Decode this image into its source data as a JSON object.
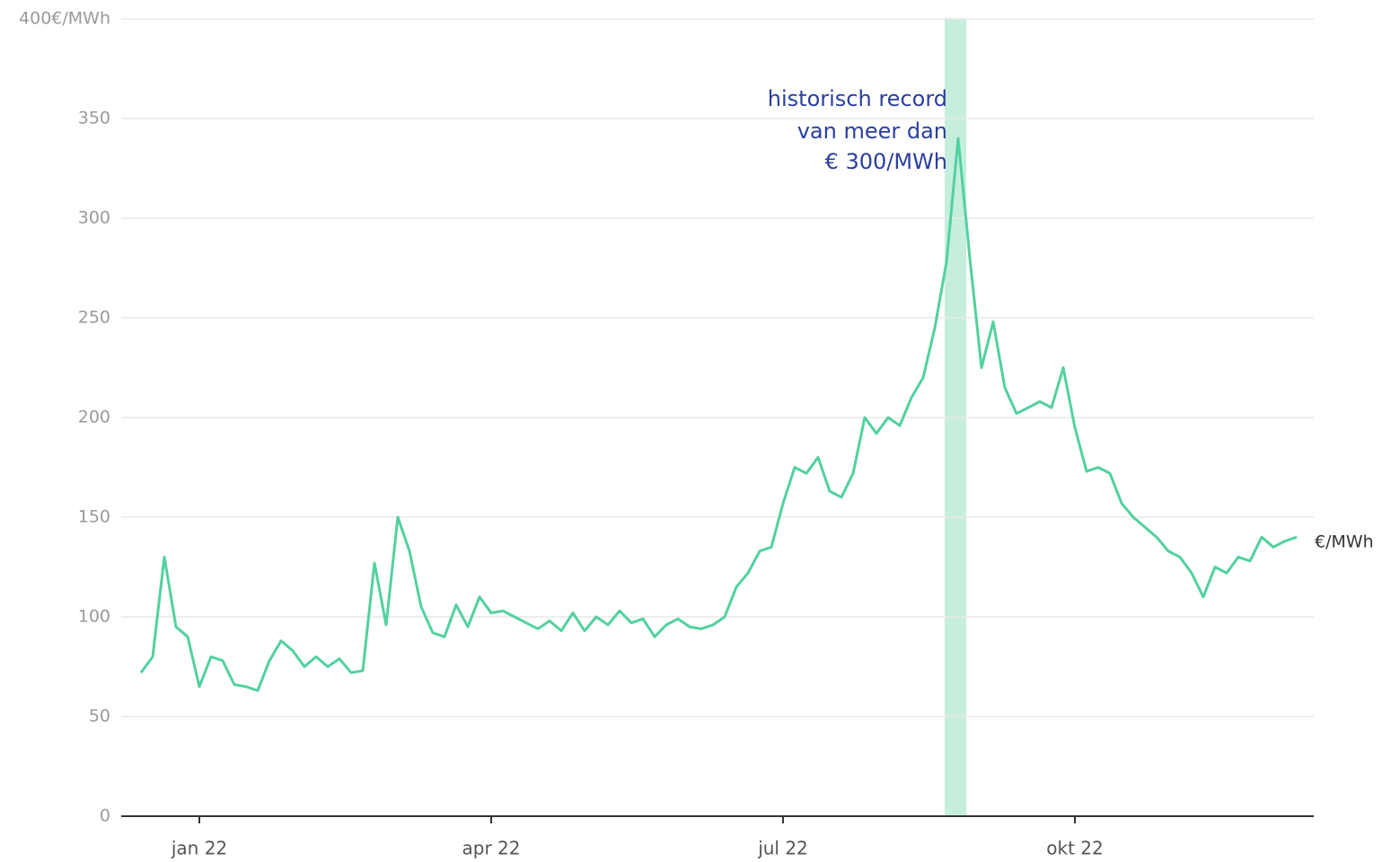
{
  "chart_data": {
    "type": "line",
    "annotation": [
      "historisch record",
      "van meer dan",
      "€ 300/MWh"
    ],
    "categories": [
      null,
      null,
      null,
      null,
      null,
      "jan 22",
      null,
      null,
      null,
      null,
      null,
      null,
      null,
      null,
      null,
      null,
      null,
      null,
      null,
      null,
      null,
      null,
      null,
      null,
      null,
      null,
      null,
      null,
      null,
      null,
      "apr 22",
      null,
      null,
      null,
      null,
      null,
      null,
      null,
      null,
      null,
      null,
      null,
      null,
      null,
      null,
      null,
      null,
      null,
      null,
      null,
      null,
      null,
      null,
      null,
      null,
      "jul 22",
      null,
      null,
      null,
      null,
      null,
      null,
      null,
      null,
      null,
      null,
      null,
      null,
      null,
      null,
      null,
      null,
      null,
      null,
      null,
      null,
      null,
      null,
      null,
      null,
      "okt 22",
      null,
      null,
      null,
      null,
      null,
      null,
      null,
      null,
      null,
      null,
      null,
      null,
      null,
      null,
      null,
      null,
      null,
      null,
      null
    ],
    "series": [
      {
        "name": "€/MWh",
        "color": "#52d19e",
        "values": [
          72,
          80,
          130,
          95,
          90,
          65,
          80,
          78,
          66,
          65,
          63,
          78,
          88,
          83,
          75,
          80,
          75,
          79,
          72,
          73,
          127,
          96,
          150,
          133,
          105,
          92,
          90,
          106,
          95,
          110,
          102,
          103,
          100,
          97,
          94,
          98,
          93,
          102,
          93,
          100,
          96,
          103,
          97,
          99,
          90,
          96,
          99,
          95,
          94,
          96,
          100,
          115,
          122,
          133,
          135,
          157,
          175,
          172,
          180,
          163,
          160,
          172,
          200,
          192,
          200,
          196,
          210,
          220,
          245,
          278,
          340,
          280,
          225,
          248,
          215,
          202,
          205,
          208,
          205,
          225,
          195,
          173,
          175,
          172,
          157,
          150,
          145,
          140,
          133,
          130,
          122,
          110,
          125,
          122,
          130,
          128,
          140,
          135,
          138,
          140
        ]
      }
    ],
    "highlight_color": "#c6eedd",
    "ylim": [
      0,
      400
    ],
    "yticks": [
      0,
      50,
      100,
      150,
      200,
      250,
      300,
      350,
      {
        "value": 400,
        "label": "400€/MWh"
      }
    ],
    "grid": true
  }
}
